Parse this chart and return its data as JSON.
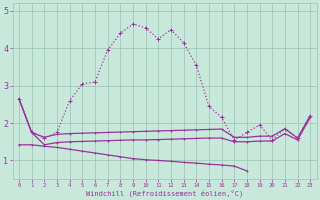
{
  "xlabel": "Windchill (Refroidissement éolien,°C)",
  "background_color": "#c8e8dc",
  "grid_color": "#a0c8b8",
  "line_color": "#993399",
  "x_values": [
    0,
    1,
    2,
    3,
    4,
    5,
    6,
    7,
    8,
    9,
    10,
    11,
    12,
    13,
    14,
    15,
    16,
    17,
    18,
    19,
    20,
    21,
    22,
    23
  ],
  "series": [
    {
      "y": [
        2.65,
        1.75,
        1.6,
        1.75,
        2.6,
        3.05,
        3.1,
        3.95,
        4.4,
        4.65,
        4.55,
        4.25,
        4.5,
        4.15,
        3.55,
        2.45,
        2.15,
        1.55,
        1.75,
        1.95,
        1.55,
        1.85,
        1.6,
        2.2
      ],
      "linestyle": ":",
      "linewidth": 0.9,
      "marker": true,
      "markersize": 2.5
    },
    {
      "y": [
        2.65,
        1.75,
        1.62,
        1.7,
        1.72,
        1.73,
        1.74,
        1.75,
        1.76,
        1.77,
        1.78,
        1.79,
        1.8,
        1.81,
        1.82,
        1.83,
        1.84,
        1.62,
        1.62,
        1.65,
        1.65,
        1.85,
        1.6,
        2.2
      ],
      "linestyle": "-",
      "linewidth": 0.9,
      "marker": true,
      "markersize": 2.0
    },
    {
      "y": [
        2.65,
        1.75,
        1.42,
        1.48,
        1.5,
        1.51,
        1.52,
        1.53,
        1.54,
        1.55,
        1.55,
        1.56,
        1.57,
        1.58,
        1.59,
        1.6,
        1.6,
        1.5,
        1.5,
        1.52,
        1.52,
        1.72,
        1.55,
        2.15
      ],
      "linestyle": "-",
      "linewidth": 0.9,
      "marker": true,
      "markersize": 2.0
    },
    {
      "y": [
        1.42,
        1.42,
        1.38,
        1.35,
        1.3,
        1.25,
        1.2,
        1.15,
        1.1,
        1.05,
        1.02,
        1.0,
        0.98,
        0.95,
        0.93,
        0.9,
        0.88,
        0.85,
        0.72,
        null,
        null,
        null,
        null,
        null
      ],
      "linestyle": "-",
      "linewidth": 0.9,
      "marker": true,
      "markersize": 2.0
    }
  ],
  "ylim": [
    0.5,
    5.2
  ],
  "xlim": [
    -0.5,
    23.5
  ],
  "yticks": [
    1,
    2,
    3,
    4,
    5
  ],
  "xticks": [
    0,
    1,
    2,
    3,
    4,
    5,
    6,
    7,
    8,
    9,
    10,
    11,
    12,
    13,
    14,
    15,
    16,
    17,
    18,
    19,
    20,
    21,
    22,
    23
  ]
}
